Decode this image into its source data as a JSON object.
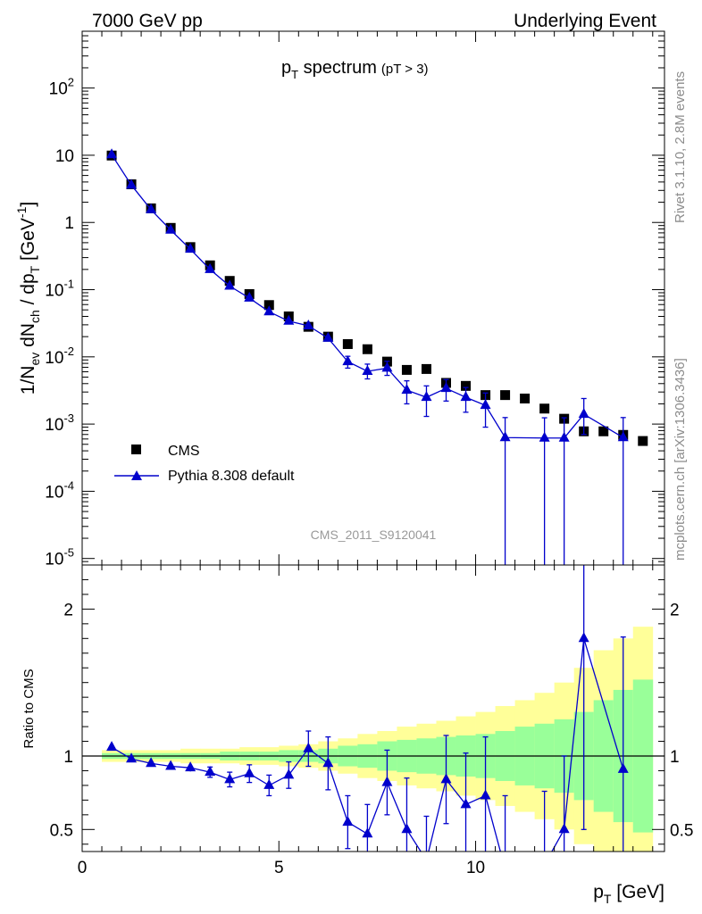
{
  "header": {
    "left": "7000 GeV pp",
    "right": "Underlying Event"
  },
  "side_labels": {
    "rivet": "Rivet 3.1.10,  2.8M events",
    "mcplots": "mcplots.cern.ch [arXiv:1306.3436]"
  },
  "chart_data": [
    {
      "type": "scatter",
      "panel": "main",
      "title": "p_T spectrum (pT >  3)",
      "title_main": "p",
      "title_sub": "T",
      "title_rest": " spectrum",
      "title_cut": "(pT >  3)",
      "watermark": "CMS_2011_S9120041",
      "ylabel": "1/N_ev dN_ch / dp_T [GeV^-1]",
      "y_scale": "log",
      "xlim": [
        0,
        14.8
      ],
      "ylim": [
        8e-06,
        700
      ],
      "y_tick_labels": [
        "10^-5",
        "10^-4",
        "10^-3",
        "10^-2",
        "10^-1",
        "1",
        "10",
        "10^2"
      ],
      "legend_position": "middle-left",
      "series": [
        {
          "name": "CMS",
          "marker": "square",
          "color": "#000000",
          "x": [
            0.75,
            1.25,
            1.75,
            2.25,
            2.75,
            3.25,
            3.75,
            4.25,
            4.75,
            5.25,
            5.75,
            6.25,
            6.75,
            7.25,
            7.75,
            8.25,
            8.75,
            9.25,
            9.75,
            10.25,
            10.75,
            11.25,
            11.75,
            12.25,
            12.75,
            13.25,
            13.75,
            14.25
          ],
          "y": [
            9.9,
            3.7,
            1.62,
            0.83,
            0.43,
            0.23,
            0.135,
            0.086,
            0.059,
            0.04,
            0.028,
            0.02,
            0.0155,
            0.013,
            0.0085,
            0.0064,
            0.0066,
            0.0041,
            0.0037,
            0.0027,
            0.0027,
            0.0024,
            0.0017,
            0.0012,
            0.00078,
            0.00078,
            0.00069,
            0.00056
          ]
        },
        {
          "name": "Pythia 8.308 default",
          "marker": "triangle",
          "color": "#0000cc",
          "x": [
            0.75,
            1.25,
            1.75,
            2.25,
            2.75,
            3.25,
            3.75,
            4.25,
            4.75,
            5.25,
            5.75,
            6.25,
            6.75,
            7.25,
            7.75,
            8.25,
            8.75,
            9.25,
            9.75,
            10.25,
            10.75,
            11.75,
            12.25,
            12.75,
            13.75
          ],
          "y": [
            10.2,
            3.6,
            1.55,
            0.77,
            0.4,
            0.2,
            0.113,
            0.075,
            0.047,
            0.034,
            0.029,
            0.019,
            0.0085,
            0.0061,
            0.0068,
            0.0032,
            0.0025,
            0.0034,
            0.0025,
            0.0019,
            0.00063,
            0.00062,
            0.00062,
            0.0014,
            0.00063
          ],
          "y_err_low": [
            0.2,
            0.07,
            0.03,
            0.015,
            0.008,
            0.006,
            0.004,
            0.003,
            0.003,
            0.002,
            0.002,
            0.002,
            0.0017,
            0.0014,
            0.0015,
            0.0012,
            0.0012,
            0.0012,
            0.001,
            0.001,
            0.00063,
            0.00062,
            0.00062,
            0.0007,
            0.00063
          ],
          "y_err_high": [
            0.2,
            0.07,
            0.03,
            0.015,
            0.008,
            0.006,
            0.004,
            0.003,
            0.003,
            0.002,
            0.002,
            0.002,
            0.0017,
            0.0017,
            0.0018,
            0.0012,
            0.0012,
            0.0012,
            0.001,
            0.001,
            0.00062,
            0.00062,
            0.00062,
            0.001,
            0.00062
          ]
        }
      ]
    },
    {
      "type": "line",
      "panel": "ratio",
      "xlabel": "p_T [GeV]",
      "ylabel": "Ratio to CMS",
      "xlim": [
        0,
        14.8
      ],
      "ylim": [
        0.35,
        2.3
      ],
      "x_ticks": [
        0,
        5,
        10
      ],
      "y_ticks": [
        0.5,
        1,
        2
      ],
      "bands": {
        "x_edges": [
          0.5,
          1.0,
          1.5,
          2.0,
          2.5,
          3.0,
          3.5,
          4.0,
          4.5,
          5.0,
          5.5,
          6.0,
          6.5,
          7.0,
          7.5,
          8.0,
          8.5,
          9.0,
          9.5,
          10.0,
          10.5,
          11.0,
          11.5,
          12.0,
          12.5,
          13.0,
          13.5,
          14.0,
          14.5
        ],
        "yellow_half_width": [
          0.04,
          0.04,
          0.04,
          0.04,
          0.05,
          0.05,
          0.05,
          0.06,
          0.06,
          0.07,
          0.08,
          0.1,
          0.12,
          0.15,
          0.17,
          0.2,
          0.22,
          0.24,
          0.27,
          0.3,
          0.34,
          0.38,
          0.43,
          0.5,
          0.6,
          0.72,
          0.8,
          0.88
        ],
        "green_half_width": [
          0.02,
          0.02,
          0.02,
          0.02,
          0.02,
          0.02,
          0.03,
          0.03,
          0.03,
          0.04,
          0.04,
          0.05,
          0.07,
          0.08,
          0.1,
          0.11,
          0.12,
          0.13,
          0.14,
          0.15,
          0.17,
          0.2,
          0.22,
          0.25,
          0.3,
          0.38,
          0.45,
          0.52
        ],
        "yellow_color": "#ffff99",
        "green_color": "#99ff99"
      },
      "reference_line": 1,
      "series": [
        {
          "name": "Pythia 8.308 default",
          "color": "#0000cc",
          "x": [
            0.75,
            1.25,
            1.75,
            2.25,
            2.75,
            3.25,
            3.75,
            4.25,
            4.75,
            5.25,
            5.75,
            6.25,
            6.75,
            7.25,
            7.75,
            8.25,
            8.75,
            9.25,
            9.75,
            10.25,
            10.75,
            11.75,
            12.25,
            12.75,
            13.75
          ],
          "y": [
            1.06,
            0.98,
            0.95,
            0.93,
            0.92,
            0.89,
            0.84,
            0.88,
            0.8,
            0.87,
            1.05,
            0.95,
            0.55,
            0.47,
            0.82,
            0.5,
            0.29,
            0.84,
            0.67,
            0.73,
            0.23,
            0.26,
            0.5,
            1.8,
            0.91
          ],
          "y_err": [
            0.01,
            0.015,
            0.015,
            0.02,
            0.025,
            0.035,
            0.05,
            0.06,
            0.07,
            0.09,
            0.12,
            0.18,
            0.18,
            0.2,
            0.22,
            0.35,
            0.3,
            0.3,
            0.35,
            0.4,
            0.5,
            0.5,
            0.5,
            1.3,
            0.9
          ]
        }
      ]
    }
  ]
}
